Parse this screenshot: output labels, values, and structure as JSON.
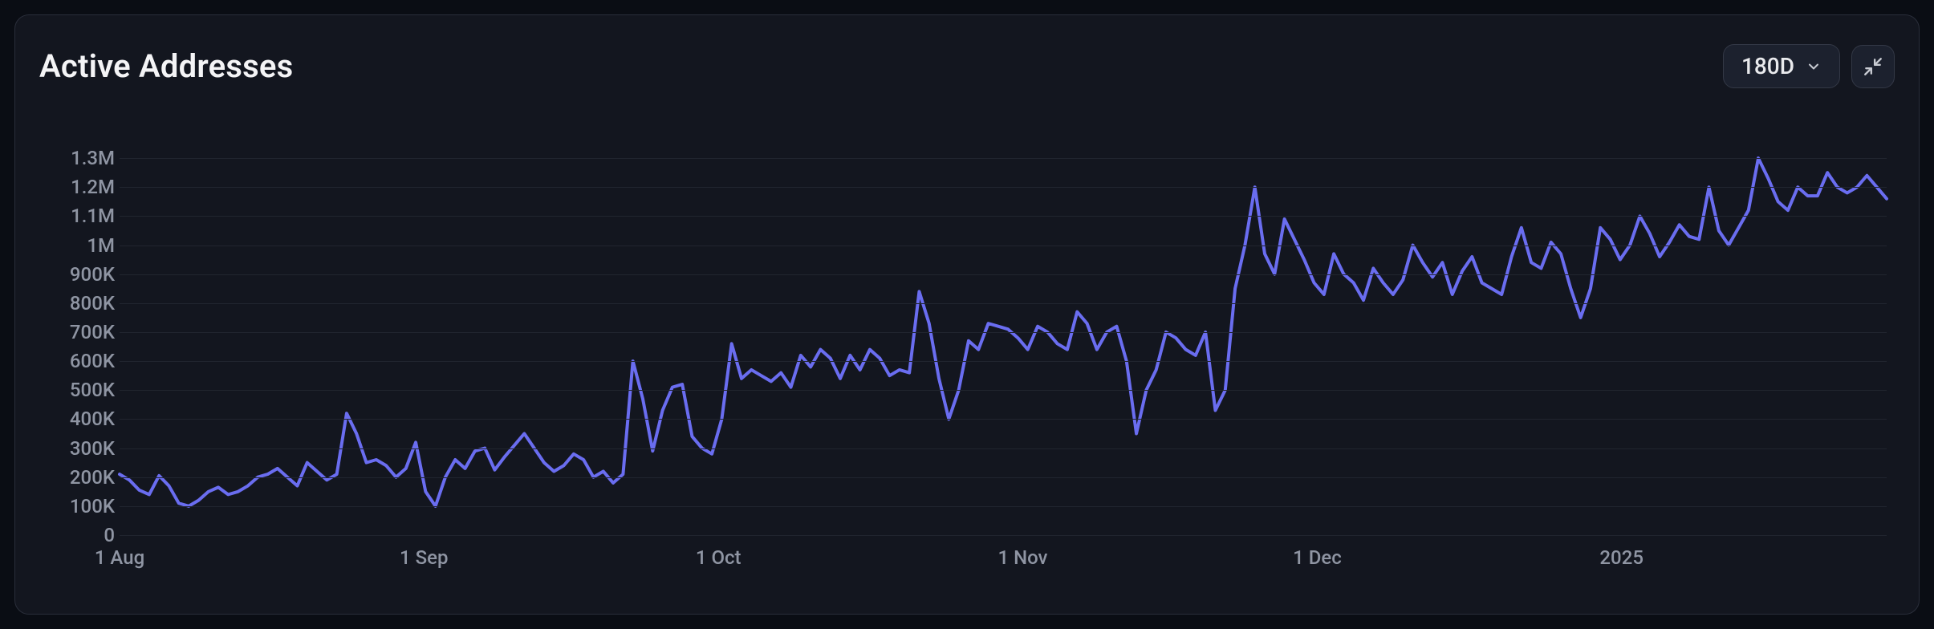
{
  "panel": {
    "title": "Active Addresses",
    "range_selector": {
      "label": "180D"
    },
    "colors": {
      "page_bg": "#0a0d14",
      "panel_bg": "#13161f",
      "panel_border": "#2a2e3a",
      "title_text": "#f4f4f6",
      "axis_text": "#8f95a3",
      "grid": "#21252f",
      "line": "#6a6df0",
      "control_bg": "#1c212e",
      "control_border": "#333846"
    }
  },
  "chart": {
    "type": "line",
    "line_color": "#6a6df0",
    "line_width": 4,
    "background_color": "#13161f",
    "grid_color": "#21252f",
    "y_axis": {
      "min": 0,
      "max": 1350000,
      "ticks": [
        {
          "v": 0,
          "label": "0"
        },
        {
          "v": 100000,
          "label": "100K"
        },
        {
          "v": 200000,
          "label": "200K"
        },
        {
          "v": 300000,
          "label": "300K"
        },
        {
          "v": 400000,
          "label": "400K"
        },
        {
          "v": 500000,
          "label": "500K"
        },
        {
          "v": 600000,
          "label": "600K"
        },
        {
          "v": 700000,
          "label": "700K"
        },
        {
          "v": 800000,
          "label": "800K"
        },
        {
          "v": 900000,
          "label": "900K"
        },
        {
          "v": 1000000,
          "label": "1M"
        },
        {
          "v": 1100000,
          "label": "1.1M"
        },
        {
          "v": 1200000,
          "label": "1.2M"
        },
        {
          "v": 1300000,
          "label": "1.3M"
        }
      ],
      "label_fontsize": 24
    },
    "x_axis": {
      "min": 0,
      "max": 180,
      "ticks": [
        {
          "v": 0,
          "label": "1 Aug"
        },
        {
          "v": 31,
          "label": "1 Sep"
        },
        {
          "v": 61,
          "label": "1 Oct"
        },
        {
          "v": 92,
          "label": "1 Nov"
        },
        {
          "v": 122,
          "label": "1 Dec"
        },
        {
          "v": 153,
          "label": "2025"
        }
      ],
      "label_fontsize": 24
    },
    "series": {
      "values": [
        210000,
        190000,
        155000,
        140000,
        205000,
        170000,
        110000,
        100000,
        120000,
        150000,
        165000,
        140000,
        150000,
        170000,
        200000,
        210000,
        230000,
        200000,
        170000,
        250000,
        220000,
        190000,
        210000,
        420000,
        350000,
        250000,
        260000,
        240000,
        200000,
        230000,
        320000,
        150000,
        100000,
        200000,
        260000,
        230000,
        290000,
        300000,
        225000,
        270000,
        310000,
        350000,
        300000,
        250000,
        220000,
        240000,
        280000,
        260000,
        200000,
        220000,
        180000,
        210000,
        600000,
        470000,
        290000,
        430000,
        510000,
        520000,
        340000,
        300000,
        280000,
        400000,
        660000,
        540000,
        570000,
        550000,
        530000,
        560000,
        510000,
        620000,
        580000,
        640000,
        610000,
        540000,
        620000,
        570000,
        640000,
        610000,
        550000,
        570000,
        560000,
        840000,
        730000,
        540000,
        400000,
        500000,
        670000,
        640000,
        730000,
        720000,
        710000,
        680000,
        640000,
        720000,
        700000,
        660000,
        640000,
        770000,
        730000,
        640000,
        700000,
        720000,
        600000,
        350000,
        500000,
        570000,
        700000,
        680000,
        640000,
        620000,
        700000,
        430000,
        500000,
        850000,
        1000000,
        1200000,
        970000,
        900000,
        1090000,
        1020000,
        950000,
        870000,
        830000,
        970000,
        900000,
        870000,
        810000,
        920000,
        870000,
        830000,
        880000,
        1000000,
        940000,
        890000,
        940000,
        830000,
        910000,
        960000,
        870000,
        850000,
        830000,
        960000,
        1060000,
        940000,
        920000,
        1010000,
        970000,
        850000,
        750000,
        850000,
        1060000,
        1020000,
        950000,
        1000000,
        1100000,
        1040000,
        960000,
        1010000,
        1070000,
        1030000,
        1020000,
        1200000,
        1050000,
        1000000,
        1060000,
        1120000,
        1300000,
        1230000,
        1150000,
        1120000,
        1200000,
        1170000,
        1170000,
        1250000,
        1200000,
        1180000,
        1200000,
        1240000,
        1200000,
        1160000
      ]
    }
  }
}
